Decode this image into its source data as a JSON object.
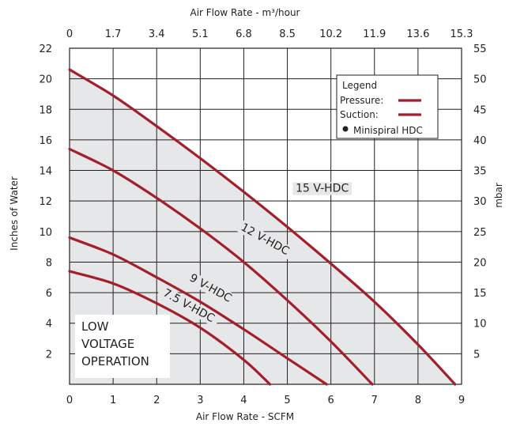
{
  "chart_data": {
    "type": "line",
    "title": "",
    "xlabel": "Air Flow Rate - SCFM",
    "ylabel": "Inches of Water",
    "top_xlabel": "Air Flow Rate - m³/hour",
    "right_ylabel": "mbar",
    "xlim": [
      0,
      9
    ],
    "ylim": [
      0,
      22
    ],
    "right_ylim": [
      0,
      55
    ],
    "x_ticks": [
      "0",
      "1",
      "2",
      "3",
      "4",
      "5",
      "6",
      "7",
      "8",
      "9"
    ],
    "y_ticks": [
      "2",
      "4",
      "6",
      "8",
      "10",
      "12",
      "14",
      "16",
      "18",
      "20",
      "22"
    ],
    "top_ticks": [
      "0",
      "1.7",
      "3.4",
      "5.1",
      "6.8",
      "8.5",
      "10.2",
      "11.9",
      "13.6",
      "15.3"
    ],
    "right_ticks": [
      "5",
      "10",
      "15",
      "20",
      "25",
      "30",
      "35",
      "40",
      "45",
      "50",
      "55"
    ],
    "grid": true,
    "series": [
      {
        "name": "15 V-HDC",
        "x": [
          0,
          1,
          2,
          3,
          4,
          5,
          6,
          7,
          8,
          8.85
        ],
        "y": [
          20.6,
          18.9,
          16.9,
          14.8,
          12.6,
          10.3,
          7.9,
          5.4,
          2.6,
          0
        ]
      },
      {
        "name": "12 V-HDC",
        "x": [
          0,
          1,
          2,
          3,
          4,
          5,
          6,
          6.95
        ],
        "y": [
          15.4,
          14.0,
          12.2,
          10.2,
          8.0,
          5.5,
          2.8,
          0
        ]
      },
      {
        "name": "9 V-HDC",
        "x": [
          0,
          1,
          2,
          3,
          4,
          5,
          5.9
        ],
        "y": [
          9.6,
          8.5,
          7.0,
          5.4,
          3.6,
          1.7,
          0
        ]
      },
      {
        "name": "7.5 V-HDC",
        "x": [
          0,
          1,
          2,
          3,
          4,
          4.6
        ],
        "y": [
          7.4,
          6.6,
          5.3,
          3.7,
          1.6,
          0
        ]
      }
    ],
    "shaded_region": "between 15 V-HDC curve and axes",
    "curve_color": "#a31f2b",
    "shade_color": "#e6e7e8",
    "legend": {
      "title": "Legend",
      "position": "top-right",
      "items": [
        {
          "label": "Pressure:",
          "marker": "line"
        },
        {
          "label": "Suction:",
          "marker": "line"
        },
        {
          "label": "Minispiral HDC",
          "marker": "dot"
        }
      ]
    },
    "annotations": [
      {
        "text": "15 V-HDC",
        "x": 5.8,
        "y": 12.6
      },
      {
        "text": "12 V-HDC",
        "x": 4.45,
        "y": 9.3,
        "rotation": 29
      },
      {
        "text": "9 V-HDC",
        "x": 3.2,
        "y": 6.1,
        "rotation": 29
      },
      {
        "text": "7.5 V-HDC",
        "x": 2.7,
        "y": 4.95,
        "rotation": 29
      }
    ],
    "note_lines": [
      "LOW",
      "VOLTAGE",
      "OPERATION"
    ]
  }
}
